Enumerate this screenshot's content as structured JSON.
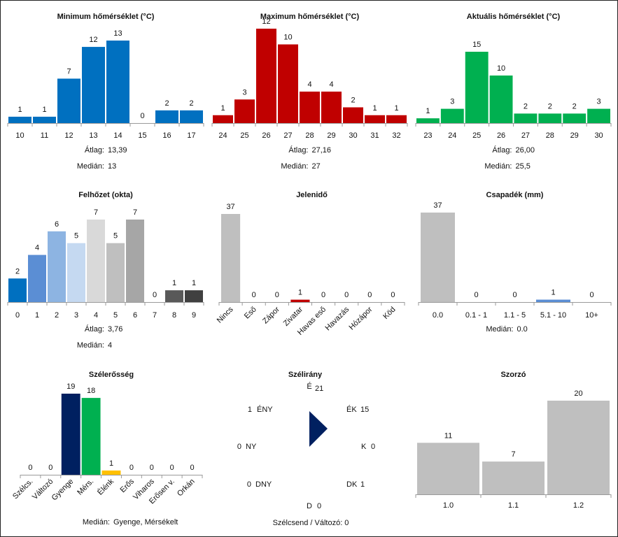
{
  "colors": {
    "blue": "#0070c0",
    "red": "#c00000",
    "green": "#00b050",
    "gray": "#bfbfbf",
    "axis": "#9a9a9a",
    "navy": "#002060",
    "yellow": "#ffc000",
    "precip_blue": "#5b8ed4"
  },
  "chart_data": [
    {
      "id": "min_temp",
      "type": "bar",
      "title": "Minimum hőmérséklet (°C)",
      "categories": [
        "10",
        "11",
        "12",
        "13",
        "14",
        "15",
        "16",
        "17"
      ],
      "values": [
        1,
        1,
        7,
        12,
        13,
        0,
        2,
        2
      ],
      "color": "#0070c0",
      "stats": [
        {
          "label": "Átlag:",
          "value": "13,39"
        },
        {
          "label": "Medián:",
          "value": "13"
        }
      ],
      "ylim": [
        0,
        14
      ]
    },
    {
      "id": "max_temp",
      "type": "bar",
      "title": "Maximum hőmérséklet (°C)",
      "categories": [
        "24",
        "25",
        "26",
        "27",
        "28",
        "29",
        "30",
        "31",
        "32"
      ],
      "values": [
        1,
        3,
        12,
        10,
        4,
        4,
        2,
        1,
        1
      ],
      "color": "#c00000",
      "stats": [
        {
          "label": "Átlag:",
          "value": "27,16"
        },
        {
          "label": "Medián:",
          "value": "27"
        }
      ],
      "ylim": [
        0,
        13
      ]
    },
    {
      "id": "cur_temp",
      "type": "bar",
      "title": "Aktuális hőmérséklet (°C)",
      "categories": [
        "23",
        "24",
        "25",
        "26",
        "27",
        "28",
        "29",
        "30"
      ],
      "values": [
        1,
        3,
        15,
        10,
        2,
        2,
        2,
        3
      ],
      "color": "#00b050",
      "stats": [
        {
          "label": "Átlag:",
          "value": "26,00"
        },
        {
          "label": "Medián:",
          "value": "25,5"
        }
      ],
      "ylim": [
        0,
        16
      ]
    },
    {
      "id": "cloud",
      "type": "bar",
      "title": "Felhőzet (okta)",
      "categories": [
        "0",
        "1",
        "2",
        "3",
        "4",
        "5",
        "6",
        "7",
        "8",
        "9"
      ],
      "values": [
        2,
        4,
        6,
        5,
        7,
        5,
        7,
        0,
        1,
        1
      ],
      "colors": [
        "#0070c0",
        "#5b8ed4",
        "#8db4e2",
        "#c5d9f1",
        "#d9d9d9",
        "#bfbfbf",
        "#a6a6a6",
        "#808080",
        "#595959",
        "#404040"
      ],
      "stats": [
        {
          "label": "Átlag:",
          "value": "3,76"
        },
        {
          "label": "Medián:",
          "value": "4"
        }
      ],
      "ylim": [
        0,
        8
      ]
    },
    {
      "id": "weather",
      "type": "bar",
      "title": "Jelenidő",
      "categories": [
        "Nincs",
        "Eső",
        "Zápor",
        "Zivatar",
        "Havas eső",
        "Havazás",
        "Hózápor",
        "Köd"
      ],
      "values": [
        37,
        0,
        0,
        1,
        0,
        0,
        0,
        0
      ],
      "colors": [
        "#bfbfbf",
        "#bfbfbf",
        "#bfbfbf",
        "#c00000",
        "#bfbfbf",
        "#bfbfbf",
        "#bfbfbf",
        "#bfbfbf"
      ],
      "stats": [],
      "ylim": [
        0,
        40
      ]
    },
    {
      "id": "precip",
      "type": "bar",
      "title": "Csapadék (mm)",
      "categories": [
        "0.0",
        "0.1 - 1",
        "1.1 - 5",
        "5.1 - 10",
        "10+"
      ],
      "values": [
        37,
        0,
        0,
        1,
        0
      ],
      "colors": [
        "#bfbfbf",
        "#bfbfbf",
        "#bfbfbf",
        "#5b8ed4",
        "#bfbfbf"
      ],
      "stats": [
        {
          "label": "Medián:",
          "value": "0.0"
        }
      ],
      "ylim": [
        0,
        40
      ]
    },
    {
      "id": "wind_strength",
      "type": "bar",
      "title": "Szélerősség",
      "categories": [
        "Szélcs.",
        "Változó",
        "Gyenge",
        "Mérs.",
        "Élénk",
        "Erős",
        "Viharos",
        "Erősen v.",
        "Orkán"
      ],
      "values": [
        0,
        0,
        19,
        18,
        1,
        0,
        0,
        0,
        0
      ],
      "colors": [
        "#bfbfbf",
        "#bfbfbf",
        "#002060",
        "#00b050",
        "#ffc000",
        "#bfbfbf",
        "#bfbfbf",
        "#bfbfbf",
        "#bfbfbf"
      ],
      "stats": [
        {
          "label": "Medián:",
          "value": "Gyenge, Mérsékelt"
        }
      ],
      "ylim": [
        0,
        20
      ]
    },
    {
      "id": "wind_dir",
      "type": "compass",
      "title": "Szélirány",
      "directions": [
        {
          "label": "É",
          "value": 21
        },
        {
          "label": "ÉK",
          "value": 15
        },
        {
          "label": "K",
          "value": 0
        },
        {
          "label": "DK",
          "value": 1
        },
        {
          "label": "D",
          "value": 0
        },
        {
          "label": "DNY",
          "value": 0
        },
        {
          "label": "NY",
          "value": 0
        },
        {
          "label": "ÉNY",
          "value": 1
        }
      ],
      "arrow_direction": "K",
      "footer": "Szélcsend / Változó: 0"
    },
    {
      "id": "multiplier",
      "type": "bar",
      "title": "Szorzó",
      "categories": [
        "1.0",
        "1.1",
        "1.2"
      ],
      "values": [
        11,
        7,
        20
      ],
      "color": "#bfbfbf",
      "stats": [],
      "ylim": [
        0,
        22
      ]
    }
  ]
}
